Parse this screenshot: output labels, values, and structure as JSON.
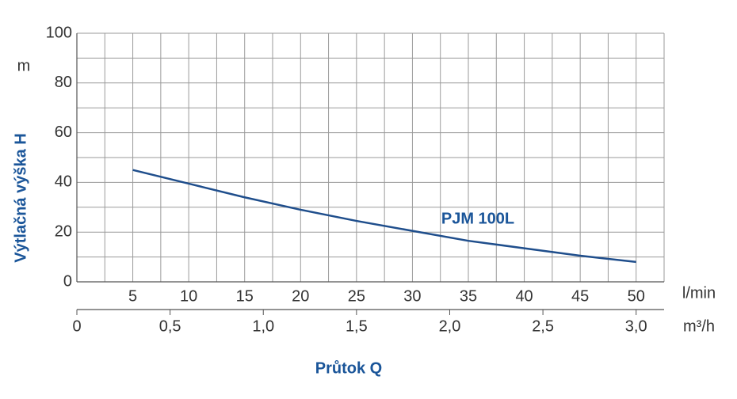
{
  "chart_data": {
    "type": "line",
    "ylabel": "Výtlačná výška H",
    "yunit": "m",
    "xlabel": "Průtok Q",
    "xunit": "l/min",
    "x2unit": "m³/h",
    "x": [
      5,
      10,
      15,
      20,
      25,
      30,
      35,
      40,
      45,
      50
    ],
    "series": [
      {
        "name": "PJM 100L",
        "color": "#1f4e8c",
        "values": [
          45,
          39.5,
          34,
          29,
          24.5,
          20.5,
          16.5,
          13.5,
          10.5,
          8
        ]
      }
    ],
    "xlim": [
      0,
      52.5
    ],
    "xticks": [
      5,
      10,
      15,
      20,
      25,
      30,
      35,
      40,
      45,
      50
    ],
    "x_minor_ticks": [
      2.5,
      7.5,
      12.5,
      17.5,
      22.5,
      27.5,
      32.5,
      37.5,
      42.5,
      47.5
    ],
    "x2lim": [
      0,
      3.15
    ],
    "x2ticks": [
      0,
      {
        "value": 0.5,
        "label": "0,5"
      },
      {
        "value": 1.0,
        "label": "1,0"
      },
      {
        "value": 1.5,
        "label": "1,5"
      },
      {
        "value": 2.0,
        "label": "2,0"
      },
      {
        "value": 2.5,
        "label": "2,5"
      },
      {
        "value": 3.0,
        "label": "3,0"
      }
    ],
    "ylim": [
      0,
      100
    ],
    "yticks": [
      0,
      20,
      40,
      60,
      80,
      100
    ],
    "y_minor_ticks": [
      10,
      30,
      50,
      70,
      90
    ],
    "grid": true
  }
}
